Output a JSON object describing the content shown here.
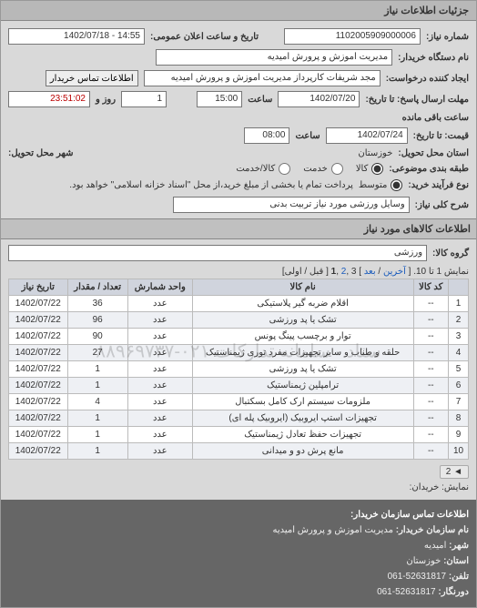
{
  "header": {
    "title": "جزئیات اطلاعات نیاز"
  },
  "fields": {
    "need_no_label": "شماره نیاز:",
    "need_no": "1102005909000006",
    "announce_label": "تاریخ و ساعت اعلان عمومی:",
    "announce": "14:55 - 1402/07/18",
    "buyer_label": "نام دستگاه خریدار:",
    "buyer": "مدیریت اموزش و پرورش امیدیه",
    "creator_label": "ایجاد کننده درخواست:",
    "creator": "مجد شریفات کارپرداز مدیریت اموزش و پرورش امیدیه",
    "contact_btn": "اطلاعات تماس خریدار",
    "deadline_label": "مهلت ارسال پاسخ: تا تاریخ:",
    "deadline_date": "1402/07/20",
    "hour_label": "ساعت",
    "deadline_hour": "15:00",
    "remain_days": "1",
    "days_word": "روز و",
    "remain_time": "23:51:02",
    "remain_suffix": "ساعت باقی مانده",
    "price_until_label": "قیمت: تا تاریخ:",
    "price_date": "1402/07/24",
    "price_hour": "08:00",
    "province_label": "استان محل تحویل:",
    "province": "خوزستان",
    "city_label": "شهر محل تحویل:",
    "classif_label": "طبقه بندی موضوعی:",
    "r1": "کالا",
    "r2": "خدمت",
    "r3": "کالا/خدمت",
    "process_label": "نوع فرآیند خرید:",
    "p1": "متوسط",
    "process_note": "پرداخت تمام یا بخشی از مبلغ خرید،از محل \"اسناد خزانه اسلامی\" خواهد بود.",
    "desc_label": "شرح کلی نیاز:",
    "desc": "وسایل ورزشی مورد نیاز تربیت بدنی",
    "goods_section": "اطلاعات کالاهای مورد نیاز",
    "group_label": "گروه کالا:",
    "group": "ورزشی"
  },
  "pager": {
    "text_prefix": "نمایش 1 تا 10. [ ",
    "last": "آخرین",
    "sep1": " / ",
    "next": "بعد",
    "mid": " ] 3 ,",
    "p2": "2",
    "comma": " ,",
    "p1": "1",
    "suffix": " [ قبل / اولی]",
    "bottom_label": "نمایش: خریدان:",
    "chip": "◄ 2"
  },
  "table": {
    "columns": [
      "",
      "کد کالا",
      "نام کالا",
      "واحد شمارش",
      "تعداد / مقدار",
      "تاریخ نیاز"
    ],
    "rows": [
      [
        "1",
        "--",
        "اقلام ضربه گیر پلاستیکی",
        "عدد",
        "36",
        "1402/07/22"
      ],
      [
        "2",
        "--",
        "تشک یا پد ورزشی",
        "عدد",
        "96",
        "1402/07/22"
      ],
      [
        "3",
        "--",
        "توار و برچسب پینگ پونس",
        "عدد",
        "90",
        "1402/07/22"
      ],
      [
        "4",
        "--",
        "حلقه و طناب و سایر تجهیزات مفرد توری ژیمناستیک",
        "عدد",
        "27",
        "1402/07/22"
      ],
      [
        "5",
        "--",
        "تشک یا پد ورزشی",
        "عدد",
        "1",
        "1402/07/22"
      ],
      [
        "6",
        "--",
        "ترامپلین ژیمناستیک",
        "عدد",
        "1",
        "1402/07/22"
      ],
      [
        "7",
        "--",
        "ملزومات سیستم ارک کامل بسکتبال",
        "عدد",
        "4",
        "1402/07/22"
      ],
      [
        "8",
        "--",
        "تجهیزات استپ ایروبیک (ایروبیک پله ای)",
        "عدد",
        "1",
        "1402/07/22"
      ],
      [
        "9",
        "--",
        "تجهیزات حفظ تعادل ژیمناستیک",
        "عدد",
        "1",
        "1402/07/22"
      ],
      [
        "10",
        "--",
        "مانع پرش دو و میدانی",
        "عدد",
        "1",
        "1402/07/22"
      ]
    ],
    "watermark": "ستاد - سامانه تدارکات ۰۲۱-۸۸۹۶۹۷۳۷"
  },
  "footer": {
    "title": "اطلاعات تماس سازمان خریدار:",
    "l1k": "نام سازمان خریدار:",
    "l1v": "مدیریت اموزش و پرورش امیدیه",
    "l2k": "شهر:",
    "l2v": "امیدیه",
    "l3k": "استان:",
    "l3v": "خوزستان",
    "l4k": "تلفن:",
    "l4v": "52631817-061",
    "l5k": "دورنگار:",
    "l5v": "52631817-061"
  }
}
